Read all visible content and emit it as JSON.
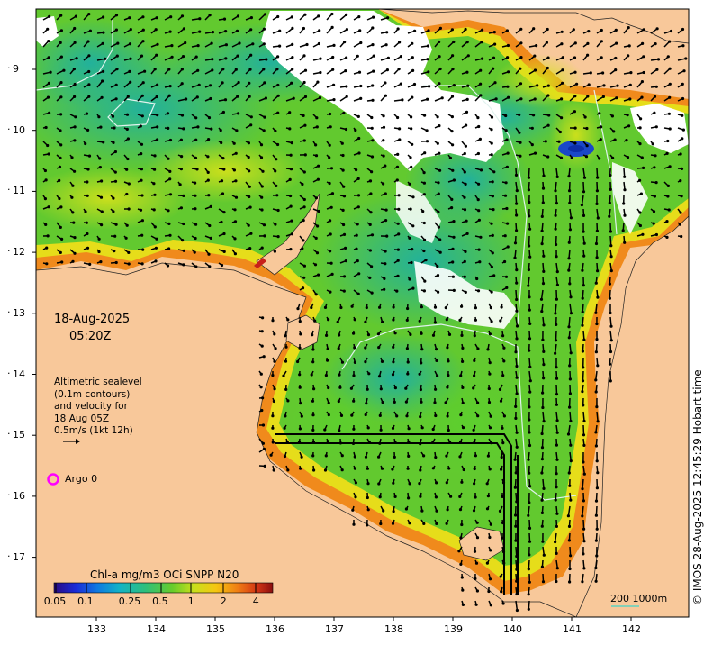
{
  "map": {
    "timestamp_date": "18-Aug-2025",
    "timestamp_time": "05:20Z",
    "legend_lines": [
      "Altimetric sealevel",
      "(0.1m contours)",
      "and velocity for",
      "18 Aug 05Z",
      "0.5m/s (1kt 12h)"
    ],
    "argo_label": "Argo 0",
    "colorbar_title": "Chl-a mg/m3 OCi SNPP N20",
    "colorbar_ticks": [
      "0.05",
      "0.1",
      "0.25",
      "0.5",
      "1",
      "2",
      "4"
    ],
    "scale_label": "200  1000m",
    "credit": "© IMOS 28-Aug-2025 12:45:29 Hobart time",
    "lat_ticks": [
      "9",
      "10",
      "11",
      "12",
      "13",
      "14",
      "15",
      "16",
      "17"
    ],
    "lon_ticks": [
      "133",
      "134",
      "135",
      "136",
      "137",
      "138",
      "139",
      "140",
      "141",
      "142"
    ],
    "colors": {
      "land": "#f8c89a",
      "cloud": "#ffffff",
      "argo": "#ff00ff",
      "contour": "#e0f2ee",
      "arrow": "#000000"
    }
  }
}
